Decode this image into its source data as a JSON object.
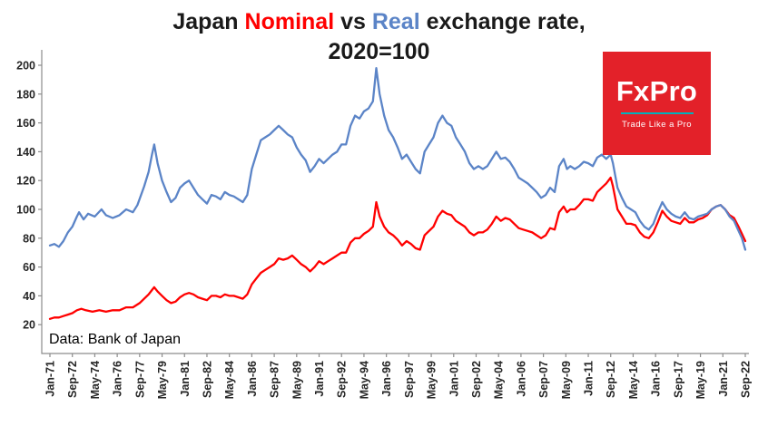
{
  "title": {
    "part1": "Japan ",
    "nominal": "Nominal",
    "part2": " vs ",
    "real": "Real",
    "part3": " exchange rate,",
    "line2": "2020=100"
  },
  "source_note": "Data: Bank of Japan",
  "logo": {
    "name": "FxPro",
    "tagline": "Trade Like a Pro"
  },
  "colors": {
    "nominal": "#FF0000",
    "real": "#5B84C7",
    "logo_bg": "#E32129",
    "logo_accent": "#00B2BD",
    "axis": "#8C8C8C",
    "tick_text": "#262626"
  },
  "chart_data": {
    "type": "line",
    "title": "Japan Nominal vs Real exchange rate, 2020=100",
    "xlabel": "",
    "ylabel": "",
    "grid": false,
    "legend_position": "none (series named and colored in title)",
    "x_unit": "months since Jan-1971",
    "xlim_months": [
      0,
      620
    ],
    "ylim": [
      0,
      200
    ],
    "y_ticks": [
      20,
      40,
      60,
      80,
      100,
      120,
      140,
      160,
      180,
      200
    ],
    "x_tick_interval_months": 20,
    "x_tick_labels": [
      "Jan-71",
      "Sep-72",
      "May-74",
      "Jan-76",
      "Sep-77",
      "May-79",
      "Jan-81",
      "Sep-82",
      "May-84",
      "Jan-86",
      "Sep-87",
      "May-89",
      "Jan-91",
      "Sep-92",
      "May-94",
      "Jan-96",
      "Sep-97",
      "May-99",
      "Jan-01",
      "Sep-02",
      "May-04",
      "Jan-06",
      "Sep-07",
      "May-09",
      "Jan-11",
      "Sep-12",
      "May-14",
      "Jan-16",
      "Sep-17",
      "May-19",
      "Jan-21",
      "Sep-22"
    ],
    "series": [
      {
        "name": "Nominal",
        "color_key": "nominal",
        "points": [
          [
            0,
            24
          ],
          [
            4,
            25
          ],
          [
            8,
            25
          ],
          [
            12,
            26
          ],
          [
            16,
            27
          ],
          [
            20,
            28
          ],
          [
            24,
            30
          ],
          [
            28,
            31
          ],
          [
            32,
            30
          ],
          [
            38,
            29
          ],
          [
            44,
            30
          ],
          [
            50,
            29
          ],
          [
            56,
            30
          ],
          [
            62,
            30
          ],
          [
            68,
            32
          ],
          [
            74,
            32
          ],
          [
            80,
            35
          ],
          [
            84,
            38
          ],
          [
            88,
            41
          ],
          [
            91,
            44
          ],
          [
            93,
            46
          ],
          [
            96,
            43
          ],
          [
            100,
            40
          ],
          [
            104,
            37
          ],
          [
            108,
            35
          ],
          [
            112,
            36
          ],
          [
            116,
            39
          ],
          [
            120,
            41
          ],
          [
            124,
            42
          ],
          [
            128,
            41
          ],
          [
            132,
            39
          ],
          [
            136,
            38
          ],
          [
            140,
            37
          ],
          [
            144,
            40
          ],
          [
            148,
            40
          ],
          [
            152,
            39
          ],
          [
            156,
            41
          ],
          [
            160,
            40
          ],
          [
            164,
            40
          ],
          [
            168,
            39
          ],
          [
            172,
            38
          ],
          [
            176,
            41
          ],
          [
            180,
            48
          ],
          [
            184,
            52
          ],
          [
            188,
            56
          ],
          [
            192,
            58
          ],
          [
            196,
            60
          ],
          [
            200,
            62
          ],
          [
            204,
            66
          ],
          [
            208,
            65
          ],
          [
            212,
            66
          ],
          [
            216,
            68
          ],
          [
            220,
            65
          ],
          [
            224,
            62
          ],
          [
            228,
            60
          ],
          [
            232,
            57
          ],
          [
            236,
            60
          ],
          [
            240,
            64
          ],
          [
            244,
            62
          ],
          [
            248,
            64
          ],
          [
            252,
            66
          ],
          [
            256,
            68
          ],
          [
            260,
            70
          ],
          [
            264,
            70
          ],
          [
            268,
            77
          ],
          [
            272,
            80
          ],
          [
            276,
            80
          ],
          [
            280,
            83
          ],
          [
            284,
            85
          ],
          [
            288,
            88
          ],
          [
            291,
            105
          ],
          [
            294,
            95
          ],
          [
            298,
            88
          ],
          [
            302,
            84
          ],
          [
            306,
            82
          ],
          [
            310,
            79
          ],
          [
            314,
            75
          ],
          [
            318,
            78
          ],
          [
            322,
            76
          ],
          [
            326,
            73
          ],
          [
            330,
            72
          ],
          [
            334,
            82
          ],
          [
            338,
            85
          ],
          [
            342,
            88
          ],
          [
            346,
            95
          ],
          [
            350,
            99
          ],
          [
            354,
            97
          ],
          [
            358,
            96
          ],
          [
            362,
            92
          ],
          [
            366,
            90
          ],
          [
            370,
            88
          ],
          [
            374,
            84
          ],
          [
            378,
            82
          ],
          [
            382,
            84
          ],
          [
            386,
            84
          ],
          [
            390,
            86
          ],
          [
            394,
            90
          ],
          [
            398,
            95
          ],
          [
            402,
            92
          ],
          [
            406,
            94
          ],
          [
            410,
            93
          ],
          [
            414,
            90
          ],
          [
            418,
            87
          ],
          [
            422,
            86
          ],
          [
            426,
            85
          ],
          [
            430,
            84
          ],
          [
            434,
            82
          ],
          [
            438,
            80
          ],
          [
            442,
            82
          ],
          [
            446,
            87
          ],
          [
            450,
            86
          ],
          [
            454,
            98
          ],
          [
            458,
            102
          ],
          [
            461,
            98
          ],
          [
            464,
            100
          ],
          [
            468,
            100
          ],
          [
            472,
            103
          ],
          [
            476,
            107
          ],
          [
            480,
            107
          ],
          [
            484,
            106
          ],
          [
            488,
            112
          ],
          [
            492,
            115
          ],
          [
            496,
            118
          ],
          [
            500,
            122
          ],
          [
            502,
            116
          ],
          [
            506,
            100
          ],
          [
            510,
            95
          ],
          [
            514,
            90
          ],
          [
            518,
            90
          ],
          [
            522,
            89
          ],
          [
            526,
            84
          ],
          [
            530,
            81
          ],
          [
            534,
            80
          ],
          [
            538,
            84
          ],
          [
            542,
            91
          ],
          [
            546,
            99
          ],
          [
            550,
            95
          ],
          [
            554,
            92
          ],
          [
            558,
            91
          ],
          [
            562,
            90
          ],
          [
            566,
            94
          ],
          [
            570,
            91
          ],
          [
            574,
            91
          ],
          [
            578,
            93
          ],
          [
            582,
            94
          ],
          [
            586,
            96
          ],
          [
            590,
            100
          ],
          [
            594,
            102
          ],
          [
            598,
            103
          ],
          [
            602,
            100
          ],
          [
            606,
            96
          ],
          [
            610,
            94
          ],
          [
            614,
            88
          ],
          [
            617,
            83
          ],
          [
            620,
            78
          ]
        ]
      },
      {
        "name": "Real",
        "color_key": "real",
        "points": [
          [
            0,
            75
          ],
          [
            4,
            76
          ],
          [
            8,
            74
          ],
          [
            12,
            78
          ],
          [
            16,
            84
          ],
          [
            20,
            88
          ],
          [
            24,
            95
          ],
          [
            26,
            98
          ],
          [
            30,
            93
          ],
          [
            34,
            97
          ],
          [
            40,
            95
          ],
          [
            46,
            100
          ],
          [
            50,
            96
          ],
          [
            56,
            94
          ],
          [
            62,
            96
          ],
          [
            68,
            100
          ],
          [
            74,
            98
          ],
          [
            78,
            103
          ],
          [
            84,
            116
          ],
          [
            88,
            126
          ],
          [
            91,
            138
          ],
          [
            93,
            145
          ],
          [
            96,
            132
          ],
          [
            100,
            120
          ],
          [
            104,
            112
          ],
          [
            108,
            105
          ],
          [
            112,
            108
          ],
          [
            116,
            115
          ],
          [
            120,
            118
          ],
          [
            124,
            120
          ],
          [
            128,
            115
          ],
          [
            132,
            110
          ],
          [
            136,
            107
          ],
          [
            140,
            104
          ],
          [
            144,
            110
          ],
          [
            148,
            109
          ],
          [
            152,
            107
          ],
          [
            156,
            112
          ],
          [
            160,
            110
          ],
          [
            164,
            109
          ],
          [
            168,
            107
          ],
          [
            172,
            105
          ],
          [
            176,
            110
          ],
          [
            180,
            128
          ],
          [
            184,
            138
          ],
          [
            188,
            148
          ],
          [
            192,
            150
          ],
          [
            196,
            152
          ],
          [
            200,
            155
          ],
          [
            204,
            158
          ],
          [
            208,
            155
          ],
          [
            212,
            152
          ],
          [
            216,
            150
          ],
          [
            220,
            143
          ],
          [
            224,
            138
          ],
          [
            228,
            134
          ],
          [
            232,
            126
          ],
          [
            236,
            130
          ],
          [
            240,
            135
          ],
          [
            244,
            132
          ],
          [
            248,
            135
          ],
          [
            252,
            138
          ],
          [
            256,
            140
          ],
          [
            260,
            145
          ],
          [
            264,
            145
          ],
          [
            268,
            158
          ],
          [
            272,
            165
          ],
          [
            276,
            163
          ],
          [
            280,
            168
          ],
          [
            284,
            170
          ],
          [
            288,
            175
          ],
          [
            291,
            198
          ],
          [
            294,
            180
          ],
          [
            298,
            165
          ],
          [
            302,
            155
          ],
          [
            306,
            150
          ],
          [
            310,
            143
          ],
          [
            314,
            135
          ],
          [
            318,
            138
          ],
          [
            322,
            133
          ],
          [
            326,
            128
          ],
          [
            330,
            125
          ],
          [
            334,
            140
          ],
          [
            338,
            145
          ],
          [
            342,
            150
          ],
          [
            346,
            160
          ],
          [
            350,
            165
          ],
          [
            354,
            160
          ],
          [
            358,
            158
          ],
          [
            362,
            150
          ],
          [
            366,
            145
          ],
          [
            370,
            140
          ],
          [
            374,
            132
          ],
          [
            378,
            128
          ],
          [
            382,
            130
          ],
          [
            386,
            128
          ],
          [
            390,
            130
          ],
          [
            394,
            135
          ],
          [
            398,
            140
          ],
          [
            402,
            135
          ],
          [
            406,
            136
          ],
          [
            410,
            133
          ],
          [
            414,
            128
          ],
          [
            418,
            122
          ],
          [
            422,
            120
          ],
          [
            426,
            118
          ],
          [
            430,
            115
          ],
          [
            434,
            112
          ],
          [
            438,
            108
          ],
          [
            442,
            110
          ],
          [
            446,
            115
          ],
          [
            450,
            112
          ],
          [
            454,
            130
          ],
          [
            458,
            135
          ],
          [
            461,
            128
          ],
          [
            464,
            130
          ],
          [
            468,
            128
          ],
          [
            472,
            130
          ],
          [
            476,
            133
          ],
          [
            480,
            132
          ],
          [
            484,
            130
          ],
          [
            488,
            136
          ],
          [
            492,
            138
          ],
          [
            496,
            135
          ],
          [
            500,
            138
          ],
          [
            502,
            132
          ],
          [
            506,
            115
          ],
          [
            510,
            108
          ],
          [
            514,
            102
          ],
          [
            518,
            100
          ],
          [
            522,
            98
          ],
          [
            526,
            92
          ],
          [
            530,
            88
          ],
          [
            534,
            86
          ],
          [
            538,
            90
          ],
          [
            542,
            98
          ],
          [
            546,
            105
          ],
          [
            550,
            100
          ],
          [
            554,
            97
          ],
          [
            558,
            95
          ],
          [
            562,
            94
          ],
          [
            566,
            98
          ],
          [
            570,
            94
          ],
          [
            574,
            93
          ],
          [
            578,
            95
          ],
          [
            582,
            96
          ],
          [
            586,
            97
          ],
          [
            590,
            100
          ],
          [
            594,
            102
          ],
          [
            598,
            103
          ],
          [
            602,
            100
          ],
          [
            606,
            95
          ],
          [
            610,
            92
          ],
          [
            614,
            85
          ],
          [
            617,
            80
          ],
          [
            620,
            72
          ]
        ]
      }
    ]
  }
}
